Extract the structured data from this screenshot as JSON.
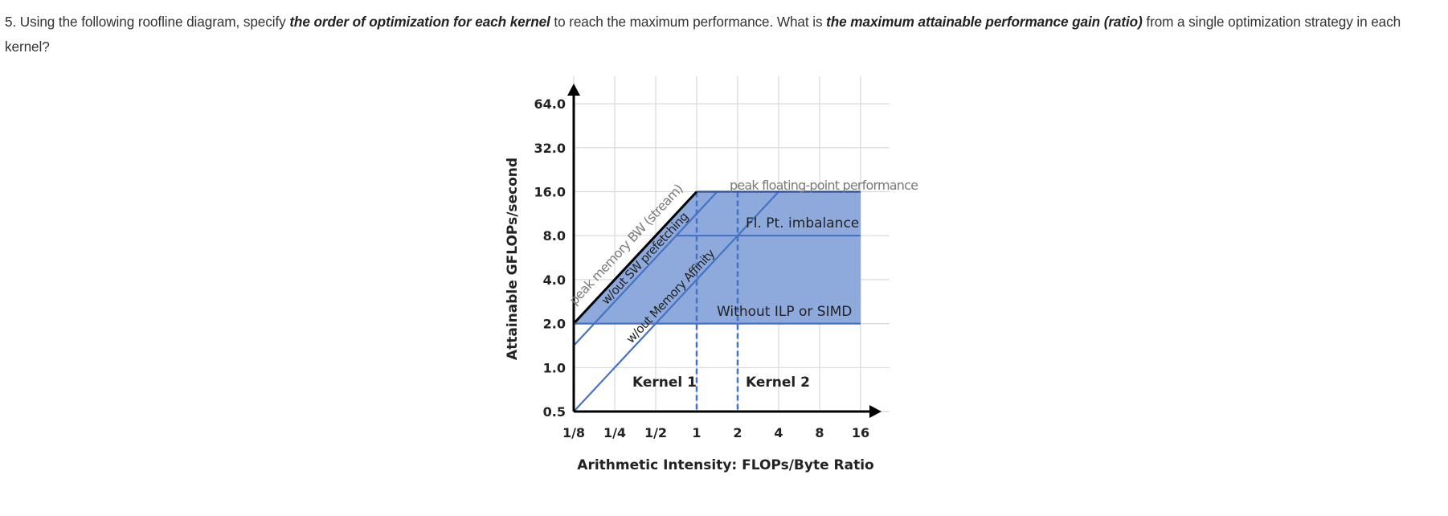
{
  "question": {
    "part1": "5. Using the following roofline diagram, specify ",
    "bold1": "the order of optimization for each kernel",
    "part2": " to reach the maximum performance. What is ",
    "bold2": "the maximum attainable performance gain (ratio)",
    "part3": " from a single optimization strategy in each kernel?"
  },
  "chart_data": {
    "type": "line",
    "scale": "log2-log2",
    "xlabel": "Arithmetic Intensity: FLOPs/Byte Ratio",
    "ylabel": "Attainable GFLOPs/second",
    "x_ticks": [
      {
        "v": 0.125,
        "label": "1/8"
      },
      {
        "v": 0.25,
        "label": "1/4"
      },
      {
        "v": 0.5,
        "label": "1/2"
      },
      {
        "v": 1,
        "label": "1"
      },
      {
        "v": 2,
        "label": "2"
      },
      {
        "v": 4,
        "label": "4"
      },
      {
        "v": 8,
        "label": "8"
      },
      {
        "v": 16,
        "label": "16"
      }
    ],
    "y_ticks": [
      {
        "v": 0.5,
        "label": "0.5"
      },
      {
        "v": 1,
        "label": "1.0"
      },
      {
        "v": 2,
        "label": "2.0"
      },
      {
        "v": 4,
        "label": "4.0"
      },
      {
        "v": 8,
        "label": "8.0"
      },
      {
        "v": 16,
        "label": "16.0"
      },
      {
        "v": 32,
        "label": "32.0"
      },
      {
        "v": 64,
        "label": "64.0"
      }
    ],
    "xlim": [
      0.125,
      16
    ],
    "ylim": [
      0.5,
      64
    ],
    "grid": true,
    "fill_color": "#8eaadc",
    "line_color": "#4472c4",
    "roofs": [
      {
        "name": "peak memory BW (stream)",
        "kind": "slope",
        "from": [
          0.125,
          2
        ],
        "to": [
          1,
          16
        ],
        "color": "#000000"
      },
      {
        "name": "w/out SW prefetching",
        "kind": "slope",
        "from": [
          0.125,
          1.414
        ],
        "to": [
          1.414,
          16
        ],
        "color": "#4472c4"
      },
      {
        "name": "w/out Memory Affinity",
        "kind": "slope",
        "from": [
          0.125,
          0.5
        ],
        "to": [
          4,
          16
        ],
        "color": "#4472c4"
      },
      {
        "name": "peak floating-point performance",
        "kind": "flat",
        "from": [
          1,
          16
        ],
        "to": [
          16,
          16
        ],
        "color": "#2f4f8f"
      },
      {
        "name": "Fl. Pt. imbalance",
        "kind": "flat",
        "from": [
          0.707,
          8
        ],
        "to": [
          16,
          8
        ],
        "color": "#4472c4"
      },
      {
        "name": "Without ILP or SIMD",
        "kind": "flat",
        "from": [
          0.125,
          2
        ],
        "to": [
          16,
          2
        ],
        "color": "#4472c4"
      }
    ],
    "kernels": [
      {
        "name": "Kernel 1",
        "x": 1
      },
      {
        "name": "Kernel 2",
        "x": 2
      }
    ]
  }
}
